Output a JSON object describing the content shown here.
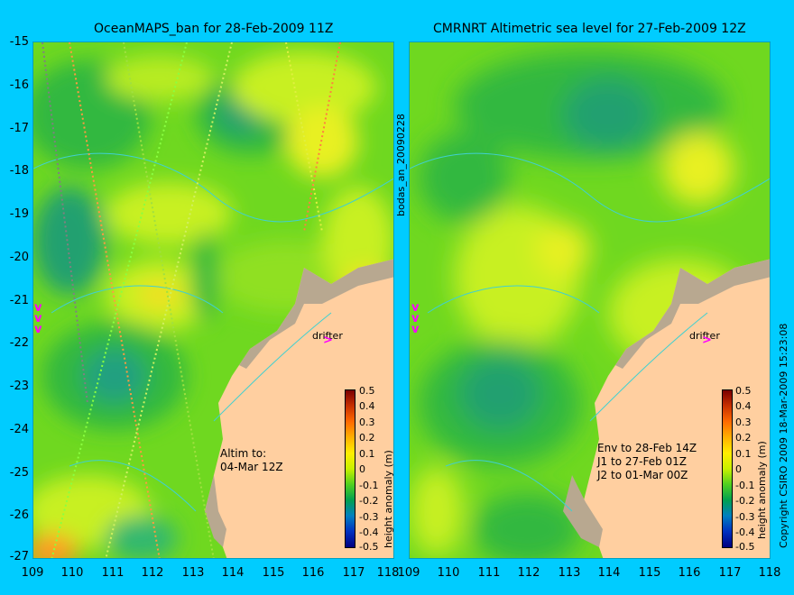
{
  "left_title": "OceanMAPS_ban for 28-Feb-2009 11Z",
  "right_title": "CMRNRT Altimetric sea level  for 27-Feb-2009 12Z",
  "y_ticks": [
    "-15",
    "-16",
    "-17",
    "-18",
    "-19",
    "-20",
    "-21",
    "-22",
    "-23",
    "-24",
    "-25",
    "-26",
    "-27"
  ],
  "x_ticks": [
    "109",
    "110",
    "111",
    "112",
    "113",
    "114",
    "115",
    "116",
    "117",
    "118"
  ],
  "colorbar": {
    "label": "height anomaly (m)",
    "ticks": [
      "0.5",
      "0.4",
      "0.3",
      "0.2",
      "0.1",
      "0",
      "-0.1",
      "-0.2",
      "-0.3",
      "-0.4",
      "-0.5"
    ],
    "colors": [
      "#7a0000",
      "#c83000",
      "#ff6a00",
      "#ffb000",
      "#ffee00",
      "#c8f000",
      "#50d020",
      "#00a050",
      "#0080c0",
      "#0030c0",
      "#000080"
    ]
  },
  "left_note": "Altim to:\n04-Mar 12Z",
  "right_note": "Env to 28-Feb 14Z\nJ1 to 27-Feb 01Z\nJ2 to 01-Mar 00Z",
  "drifter_label": "drifter",
  "vertical_mid_label": "bodas_an_20090228",
  "copyright": "Copyright CSIRO 2009  18-Mar-2009 15:23:08",
  "land_color": "#ffcfa0",
  "shelf_color": "#b8a890"
}
